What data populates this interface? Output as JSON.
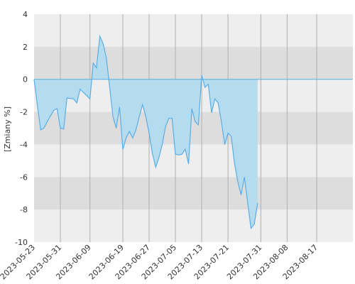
{
  "chart_data": {
    "type": "area",
    "ylabel": "[Zmiany %]",
    "ylim": [
      -10,
      4
    ],
    "yticks": [
      4,
      2,
      0,
      -2,
      -4,
      -6,
      -8,
      -10
    ],
    "xlim": [
      "2023-05-23",
      "2023-08-28"
    ],
    "xticks": [
      "2023-05-23",
      "2023-05-31",
      "2023-06-09",
      "2023-06-19",
      "2023-06-27",
      "2023-07-05",
      "2023-07-13",
      "2023-07-21",
      "2023-07-31",
      "2023-08-08",
      "2023-08-17"
    ],
    "grid": true,
    "colors": {
      "band_light": "#eeeeee",
      "band_dark": "#dddddd",
      "area_fill": "#b4dcee",
      "line": "#5aaee8",
      "zero_line": "#5aaee8",
      "grid_vertical": "#b0b0b0"
    },
    "series": [
      {
        "values": [
          {
            "x": "2023-05-23",
            "y": 0.0
          },
          {
            "x": "2023-05-24",
            "y": -1.6
          },
          {
            "x": "2023-05-25",
            "y": -3.1
          },
          {
            "x": "2023-05-26",
            "y": -3.0
          },
          {
            "x": "2023-05-27",
            "y": -2.6
          },
          {
            "x": "2023-05-29",
            "y": -1.9
          },
          {
            "x": "2023-05-30",
            "y": -1.8
          },
          {
            "x": "2023-05-31",
            "y": -3.0
          },
          {
            "x": "2023-06-01",
            "y": -3.05
          },
          {
            "x": "2023-06-02",
            "y": -1.15
          },
          {
            "x": "2023-06-04",
            "y": -1.2
          },
          {
            "x": "2023-06-05",
            "y": -1.45
          },
          {
            "x": "2023-06-06",
            "y": -0.6
          },
          {
            "x": "2023-06-08",
            "y": -1.0
          },
          {
            "x": "2023-06-09",
            "y": -1.2
          },
          {
            "x": "2023-06-10",
            "y": 1.0
          },
          {
            "x": "2023-06-11",
            "y": 0.7
          },
          {
            "x": "2023-06-12",
            "y": 2.65
          },
          {
            "x": "2023-06-13",
            "y": 2.2
          },
          {
            "x": "2023-06-14",
            "y": 1.3
          },
          {
            "x": "2023-06-15",
            "y": -0.5
          },
          {
            "x": "2023-06-16",
            "y": -2.3
          },
          {
            "x": "2023-06-17",
            "y": -3.0
          },
          {
            "x": "2023-06-18",
            "y": -1.7
          },
          {
            "x": "2023-06-19",
            "y": -4.3
          },
          {
            "x": "2023-06-20",
            "y": -3.6
          },
          {
            "x": "2023-06-21",
            "y": -3.2
          },
          {
            "x": "2023-06-22",
            "y": -3.6
          },
          {
            "x": "2023-06-23",
            "y": -3.1
          },
          {
            "x": "2023-06-24",
            "y": -2.3
          },
          {
            "x": "2023-06-25",
            "y": -1.55
          },
          {
            "x": "2023-06-26",
            "y": -2.3
          },
          {
            "x": "2023-06-27",
            "y": -3.3
          },
          {
            "x": "2023-06-28",
            "y": -4.55
          },
          {
            "x": "2023-06-29",
            "y": -5.4
          },
          {
            "x": "2023-06-30",
            "y": -4.8
          },
          {
            "x": "2023-07-01",
            "y": -4.0
          },
          {
            "x": "2023-07-02",
            "y": -2.9
          },
          {
            "x": "2023-07-03",
            "y": -2.4
          },
          {
            "x": "2023-07-04",
            "y": -2.4
          },
          {
            "x": "2023-07-05",
            "y": -4.6
          },
          {
            "x": "2023-07-06",
            "y": -4.65
          },
          {
            "x": "2023-07-07",
            "y": -4.6
          },
          {
            "x": "2023-07-08",
            "y": -4.3
          },
          {
            "x": "2023-07-09",
            "y": -5.2
          },
          {
            "x": "2023-07-10",
            "y": -1.8
          },
          {
            "x": "2023-07-11",
            "y": -2.6
          },
          {
            "x": "2023-07-12",
            "y": -2.8
          },
          {
            "x": "2023-07-13",
            "y": 0.25
          },
          {
            "x": "2023-07-14",
            "y": -0.5
          },
          {
            "x": "2023-07-15",
            "y": -0.3
          },
          {
            "x": "2023-07-16",
            "y": -2.05
          },
          {
            "x": "2023-07-17",
            "y": -1.2
          },
          {
            "x": "2023-07-18",
            "y": -1.45
          },
          {
            "x": "2023-07-19",
            "y": -2.6
          },
          {
            "x": "2023-07-20",
            "y": -4.0
          },
          {
            "x": "2023-07-21",
            "y": -3.3
          },
          {
            "x": "2023-07-22",
            "y": -3.5
          },
          {
            "x": "2023-07-23",
            "y": -5.2
          },
          {
            "x": "2023-07-24",
            "y": -6.3
          },
          {
            "x": "2023-07-25",
            "y": -7.1
          },
          {
            "x": "2023-07-26",
            "y": -6.0
          },
          {
            "x": "2023-07-27",
            "y": -7.6
          },
          {
            "x": "2023-07-28",
            "y": -9.15
          },
          {
            "x": "2023-07-29",
            "y": -8.9
          },
          {
            "x": "2023-07-30",
            "y": -7.6
          }
        ]
      }
    ]
  }
}
